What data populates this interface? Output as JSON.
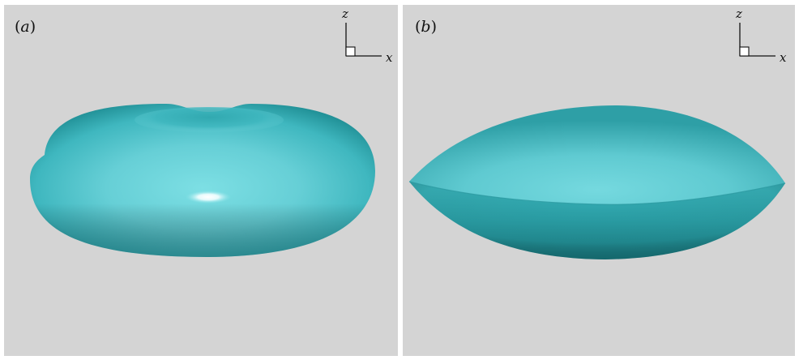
{
  "panels": [
    {
      "label_open": "(",
      "label": "a",
      "label_close": ")",
      "axis_z": "z",
      "axis_x": "x",
      "shape": "torus-like discocyte (biconcave disc)"
    },
    {
      "label_open": "(",
      "label": "b",
      "label_close": ")",
      "axis_z": "z",
      "axis_x": "x",
      "shape": "lens with sharp rim"
    }
  ],
  "colors": {
    "background": "#d4d4d4",
    "surface_light": "#6fd4da",
    "surface_mid": "#3cb8bf",
    "surface_dark": "#1e8a90",
    "highlight": "#ffffff"
  }
}
